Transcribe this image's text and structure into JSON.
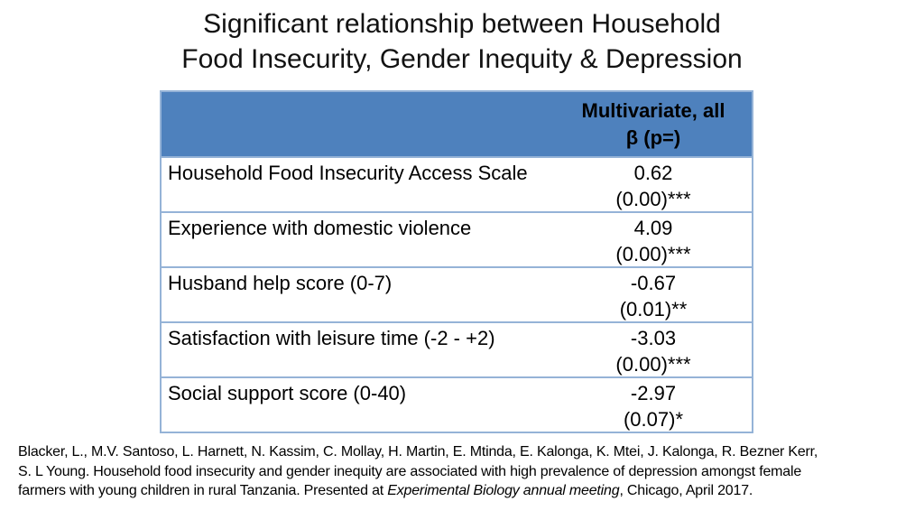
{
  "title": {
    "line1": "Significant relationship between Household",
    "line2": "Food Insecurity, Gender Inequity & Depression"
  },
  "table": {
    "header": {
      "line1": "Multivariate, all",
      "line2": "β (p=)"
    },
    "rows": [
      {
        "label": "Household Food Insecurity Access Scale",
        "beta": "0.62",
        "p": "(0.00)***"
      },
      {
        "label": "Experience with domestic violence",
        "beta": "4.09",
        "p": "(0.00)***"
      },
      {
        "label": "Husband help score (0-7)",
        "beta": "-0.67",
        "p": "(0.01)**"
      },
      {
        "label": "Satisfaction with leisure time (-2 - +2)",
        "beta": "-3.03",
        "p": "(0.00)***"
      },
      {
        "label": "Social support score (0-40)",
        "beta": "-2.97",
        "p": "(0.07)*"
      }
    ]
  },
  "citation": {
    "line1": "Blacker, L., M.V. Santoso, L. Harnett, N. Kassim, C. Mollay, H. Martin, E. Mtinda, E. Kalonga, K. Mtei, J. Kalonga, R. Bezner Kerr,",
    "line2": "S. L Young. Household food insecurity and gender inequity are associated with high prevalence of depression amongst female",
    "line3_pre": "farmers with young children in rural Tanzania. Presented at ",
    "line3_italic": "Experimental Biology annual meeting",
    "line3_post": ", Chicago, April 2017."
  },
  "colors": {
    "header_fill": "#4E81BD",
    "table_border": "#95B3D7",
    "text": "#000000",
    "background": "#FFFFFF"
  }
}
